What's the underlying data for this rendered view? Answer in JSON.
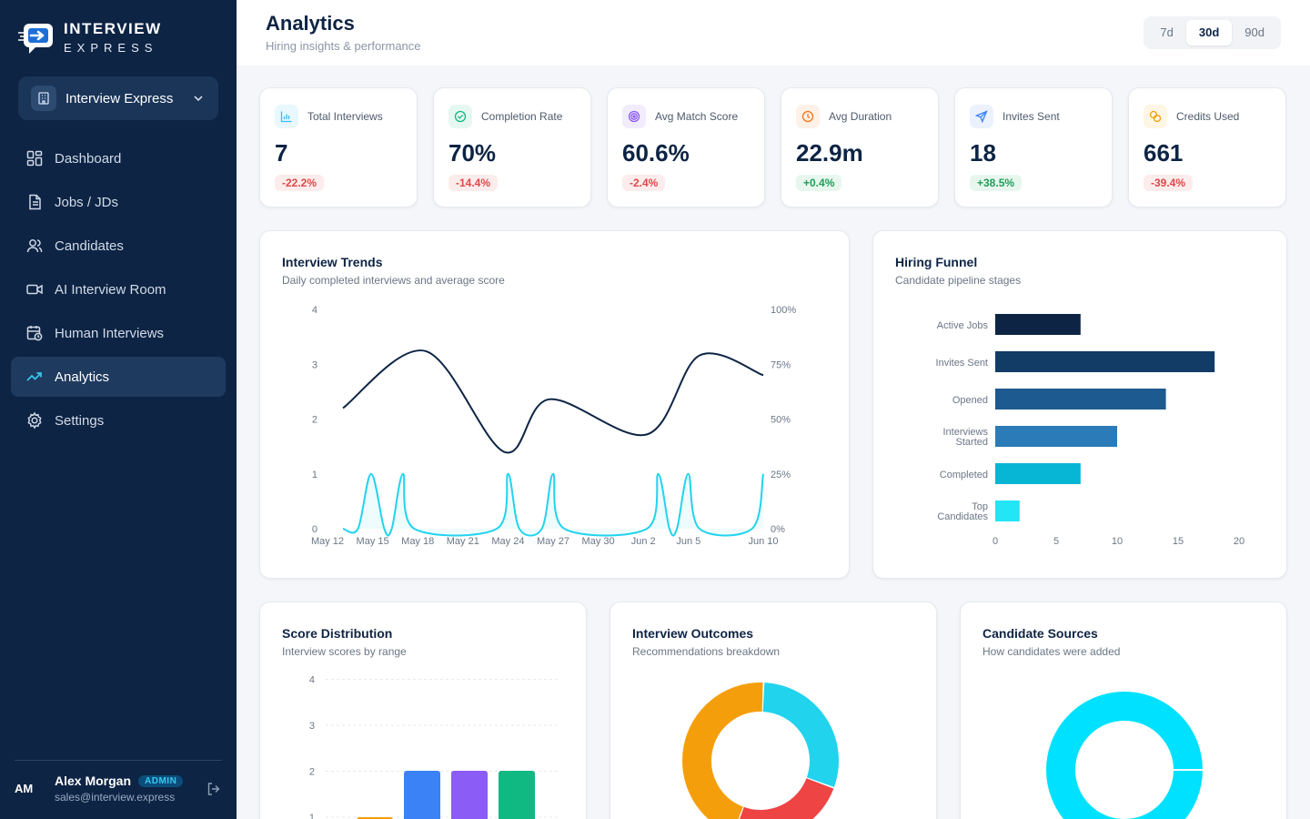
{
  "brand": {
    "top": "INTERVIEW",
    "bottom": "EXPRESS"
  },
  "workspace": {
    "label": "Interview Express"
  },
  "nav": [
    {
      "label": "Dashboard",
      "icon": "dashboard-icon"
    },
    {
      "label": "Jobs / JDs",
      "icon": "document-icon"
    },
    {
      "label": "Candidates",
      "icon": "users-icon"
    },
    {
      "label": "AI Interview Room",
      "icon": "video-icon"
    },
    {
      "label": "Human Interviews",
      "icon": "calendar-clock-icon"
    },
    {
      "label": "Analytics",
      "icon": "trend-icon",
      "active": true
    },
    {
      "label": "Settings",
      "icon": "gear-icon"
    }
  ],
  "user": {
    "initials": "AM",
    "name": "Alex Morgan",
    "role": "ADMIN",
    "email": "sales@interview.express"
  },
  "header": {
    "title": "Analytics",
    "subtitle": "Hiring insights & performance"
  },
  "range": {
    "options": [
      "7d",
      "30d",
      "90d"
    ],
    "selected": "30d"
  },
  "kpis": [
    {
      "label": "Total Interviews",
      "value": "7",
      "change": "-22.2%",
      "trend": "neg",
      "icon": "bar-chart-icon",
      "color": "#38bdf8"
    },
    {
      "label": "Completion Rate",
      "value": "70%",
      "change": "-14.4%",
      "trend": "neg",
      "icon": "check-circle-icon",
      "color": "#10b981"
    },
    {
      "label": "Avg Match Score",
      "value": "60.6%",
      "change": "-2.4%",
      "trend": "neg",
      "icon": "target-icon",
      "color": "#8b5cf6"
    },
    {
      "label": "Avg Duration",
      "value": "22.9m",
      "change": "+0.4%",
      "trend": "pos",
      "icon": "clock-icon",
      "color": "#f97316"
    },
    {
      "label": "Invites Sent",
      "value": "18",
      "change": "+38.5%",
      "trend": "pos",
      "icon": "send-icon",
      "color": "#3b82f6"
    },
    {
      "label": "Credits Used",
      "value": "661",
      "change": "-39.4%",
      "trend": "neg",
      "icon": "coins-icon",
      "color": "#f59e0b"
    }
  ],
  "panels": {
    "trends": {
      "title": "Interview Trends",
      "subtitle": "Daily completed interviews and average score"
    },
    "funnel": {
      "title": "Hiring Funnel",
      "subtitle": "Candidate pipeline stages"
    },
    "scores": {
      "title": "Score Distribution",
      "subtitle": "Interview scores by range"
    },
    "outcomes": {
      "title": "Interview Outcomes",
      "subtitle": "Recommendations breakdown"
    },
    "sources": {
      "title": "Candidate Sources",
      "subtitle": "How candidates were added"
    }
  },
  "chart_data": [
    {
      "id": "trends",
      "type": "line",
      "x_labels": [
        "May 12",
        "May 15",
        "May 18",
        "May 21",
        "May 24",
        "May 27",
        "May 30",
        "Jun 2",
        "Jun 5",
        "Jun 10"
      ],
      "y_left_ticks": [
        "0",
        "1",
        "2",
        "3",
        "4"
      ],
      "y_right_ticks": [
        "0%",
        "25%",
        "50%",
        "75%",
        "100%"
      ],
      "ylim_left": [
        0,
        4
      ],
      "ylim_right": [
        0,
        100
      ],
      "series": [
        {
          "axis": "right",
          "color": "#0d2444",
          "points": [
            [
              0,
              55
            ],
            [
              2.2,
              81
            ],
            [
              4.3,
              35
            ],
            [
              5.5,
              59
            ],
            [
              8.1,
              43
            ],
            [
              9.5,
              79
            ],
            [
              11.2,
              70
            ]
          ]
        },
        {
          "axis": "left",
          "color": "#22d3ee",
          "points": [
            [
              0,
              0
            ],
            [
              0.4,
              0
            ],
            [
              0.75,
              1
            ],
            [
              1.1,
              0
            ],
            [
              1.3,
              0
            ],
            [
              1.6,
              1
            ],
            [
              1.9,
              0
            ],
            [
              4.1,
              0
            ],
            [
              4.4,
              1
            ],
            [
              4.7,
              0
            ],
            [
              5.3,
              0
            ],
            [
              5.6,
              1
            ],
            [
              5.9,
              0
            ],
            [
              8.1,
              0
            ],
            [
              8.4,
              1
            ],
            [
              8.7,
              0
            ],
            [
              8.9,
              0
            ],
            [
              9.2,
              1
            ],
            [
              9.5,
              0
            ],
            [
              10.9,
              0
            ],
            [
              11.2,
              1
            ]
          ]
        }
      ],
      "x_span": 11.2
    },
    {
      "id": "funnel",
      "type": "bar",
      "orientation": "horizontal",
      "categories": [
        "Active Jobs",
        "Invites Sent",
        "Opened",
        "Interviews Started",
        "Completed",
        "Top Candidates"
      ],
      "values": [
        7,
        18,
        14,
        10,
        7,
        2
      ],
      "colors": [
        "#0d2444",
        "#123b66",
        "#1d5a8f",
        "#2b7bb8",
        "#06b6d4",
        "#22e5f5"
      ],
      "x_ticks": [
        "0",
        "5",
        "10",
        "15",
        "20"
      ],
      "xlim": [
        0,
        20
      ]
    },
    {
      "id": "scores",
      "type": "bar",
      "y_ticks": [
        "1",
        "2",
        "3",
        "4"
      ],
      "ylim": [
        0,
        4
      ],
      "values": [
        1,
        2,
        2,
        2
      ],
      "colors": [
        "#f59e0b",
        "#3b82f6",
        "#8b5cf6",
        "#10b981"
      ]
    },
    {
      "id": "outcomes",
      "type": "pie",
      "donut": true,
      "slices": [
        {
          "value": 30,
          "color": "#22d3ee"
        },
        {
          "value": 25,
          "color": "#ef4444"
        },
        {
          "value": 45,
          "color": "#f59e0b"
        }
      ]
    },
    {
      "id": "sources",
      "type": "pie",
      "donut": true,
      "slices": [
        {
          "value": 100,
          "color": "#00e1ff"
        }
      ]
    }
  ]
}
